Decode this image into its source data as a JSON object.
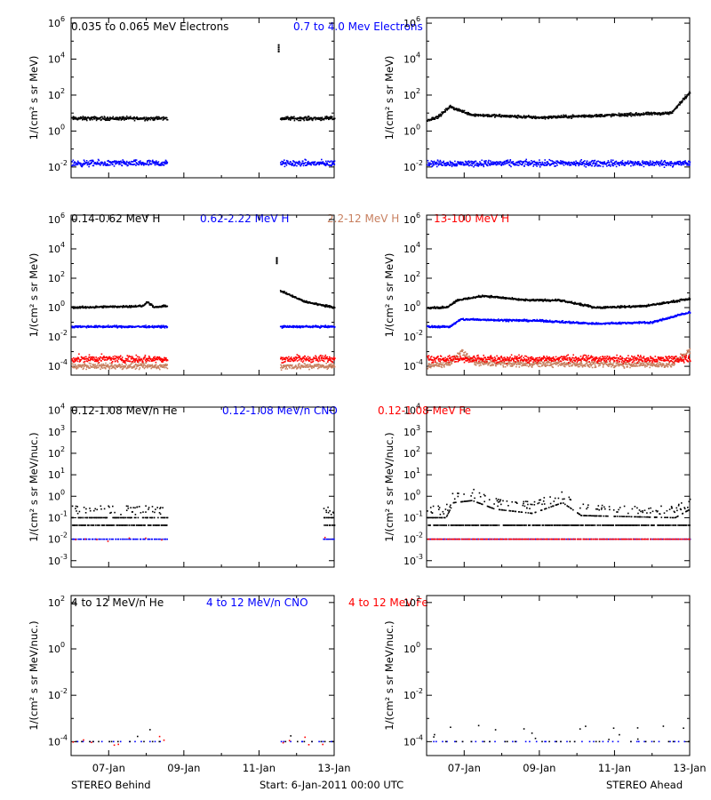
{
  "colors": {
    "black": "#000000",
    "blue": "#0000ff",
    "tan": "#c88060",
    "red": "#ff0000"
  },
  "footer": {
    "left": "STEREO Behind",
    "center": "Start:  6-Jan-2011 00:00 UTC",
    "right": "STEREO Ahead"
  },
  "chart_data": [
    {
      "type": "scatter",
      "row": 0,
      "ylabel": "1/(cm² s sr MeV)",
      "legend": [
        {
          "text": "0.035 to 0.065 MeV Electrons",
          "color": "#000000"
        },
        {
          "text": "0.7 to 4.0 Mev Electrons",
          "color": "#0000ff"
        }
      ],
      "ytick_exponents": [
        -2,
        0,
        2,
        4,
        6
      ],
      "xlim": [
        0,
        7
      ],
      "xticks": [
        "07-Jan",
        "09-Jan",
        "11-Jan",
        "13-Jan"
      ],
      "panels": [
        {
          "side": "Behind",
          "gaps": [
            [
              2.55,
              5.55
            ]
          ],
          "spike": {
            "x": 5.5,
            "level_exp": 4.6
          },
          "series": [
            {
              "color": "#000000",
              "level_exp": 0.7,
              "spread": 0.15
            },
            {
              "color": "#0000ff",
              "level_exp": -1.8,
              "spread": 0.25
            }
          ]
        },
        {
          "side": "Ahead",
          "gaps": [],
          "series": [
            {
              "color": "#000000",
              "level_exp": 0.7,
              "spread": 0.12,
              "profile": [
                [
                  0,
                  0.6
                ],
                [
                  0.3,
                  0.8
                ],
                [
                  0.6,
                  1.35
                ],
                [
                  1.2,
                  0.9
                ],
                [
                  3,
                  0.75
                ],
                [
                  5.2,
                  0.9
                ],
                [
                  6.5,
                  1.0
                ],
                [
                  7,
                  2.2
                ]
              ]
            },
            {
              "color": "#0000ff",
              "level_exp": -1.8,
              "spread": 0.25
            }
          ]
        }
      ]
    },
    {
      "type": "scatter",
      "row": 1,
      "ylabel": "1/(cm² s sr MeV)",
      "legend": [
        {
          "text": "0.14-0.62 MeV H",
          "color": "#000000"
        },
        {
          "text": "0.62-2.22 MeV H",
          "color": "#0000ff"
        },
        {
          "text": "2.2-12 MeV H",
          "color": "#c88060"
        },
        {
          "text": "13-100 MeV H",
          "color": "#ff0000"
        }
      ],
      "ytick_exponents": [
        -4,
        -2,
        0,
        2,
        4,
        6
      ],
      "xlim": [
        0,
        7
      ],
      "xticks": [
        "07-Jan",
        "09-Jan",
        "11-Jan",
        "13-Jan"
      ],
      "panels": [
        {
          "side": "Behind",
          "gaps": [
            [
              2.55,
              5.55
            ]
          ],
          "spike": {
            "x": 5.45,
            "level_exp": 3.2
          },
          "series": [
            {
              "color": "#000000",
              "level_exp": 0.0,
              "spread": 0.1,
              "profile": [
                [
                  0,
                  0
                ],
                [
                  1.9,
                  0.1
                ],
                [
                  2.0,
                  0.4
                ],
                [
                  2.2,
                  0.0
                ],
                [
                  5.5,
                  1.2
                ],
                [
                  6.2,
                  0.4
                ],
                [
                  7,
                  0
                ]
              ]
            },
            {
              "color": "#0000ff",
              "level_exp": -1.3,
              "spread": 0.1
            },
            {
              "color": "#c88060",
              "level_exp": -4.0,
              "spread": 0.3
            },
            {
              "color": "#ff0000",
              "level_exp": -3.5,
              "spread": 0.35
            }
          ]
        },
        {
          "side": "Ahead",
          "gaps": [],
          "series": [
            {
              "color": "#000000",
              "level_exp": 0.0,
              "spread": 0.1,
              "profile": [
                [
                  0,
                  0
                ],
                [
                  0.5,
                  0
                ],
                [
                  0.8,
                  0.5
                ],
                [
                  1.5,
                  0.8
                ],
                [
                  2.6,
                  0.5
                ],
                [
                  3.5,
                  0.5
                ],
                [
                  4.5,
                  0
                ],
                [
                  5.8,
                  0.1
                ],
                [
                  7,
                  0.6
                ]
              ]
            },
            {
              "color": "#0000ff",
              "level_exp": -1.3,
              "spread": 0.1,
              "profile": [
                [
                  0,
                  -1.3
                ],
                [
                  0.6,
                  -1.3
                ],
                [
                  0.9,
                  -0.8
                ],
                [
                  3,
                  -0.9
                ],
                [
                  4.5,
                  -1.1
                ],
                [
                  6,
                  -1.0
                ],
                [
                  7,
                  -0.3
                ]
              ]
            },
            {
              "color": "#c88060",
              "level_exp": -4.0,
              "spread": 0.3,
              "profile": [
                [
                  0,
                  -4
                ],
                [
                  0.6,
                  -3.8
                ],
                [
                  0.9,
                  -3.0
                ],
                [
                  1.3,
                  -3.8
                ],
                [
                  6.5,
                  -3.9
                ],
                [
                  7,
                  -2.9
                ]
              ]
            },
            {
              "color": "#ff0000",
              "level_exp": -3.5,
              "spread": 0.35
            }
          ]
        }
      ]
    },
    {
      "type": "scatter",
      "row": 2,
      "ylabel": "1/(cm² s sr MeV/nuc.)",
      "legend": [
        {
          "text": "0.12-1.08 MeV/n He",
          "color": "#000000"
        },
        {
          "text": "0.12-1.08 MeV/n CNO",
          "color": "#0000ff"
        },
        {
          "text": "0.12-1.08 MeV Fe",
          "color": "#ff0000"
        }
      ],
      "ytick_exponents": [
        -3,
        -2,
        -1,
        0,
        1,
        2,
        3,
        4
      ],
      "xlim": [
        0,
        7
      ],
      "xticks": [
        "07-Jan",
        "09-Jan",
        "11-Jan",
        "13-Jan"
      ],
      "panels": [
        {
          "side": "Behind",
          "gaps": [
            [
              2.55,
              6.7
            ]
          ],
          "series": [
            {
              "color": "#000000",
              "level_exp": -1.0,
              "spread": 0.15,
              "quantized": true
            },
            {
              "color": "#0000ff",
              "level_exp": -2.0,
              "spread": 0.0
            },
            {
              "color": "#ff0000",
              "level_exp": -2.0,
              "spread": 0.2,
              "sparse": true
            }
          ]
        },
        {
          "side": "Ahead",
          "gaps": [],
          "series": [
            {
              "color": "#000000",
              "level_exp": -1.0,
              "spread": 0.15,
              "quantized": true,
              "profile": [
                [
                  0,
                  -1.0
                ],
                [
                  0.5,
                  -1.0
                ],
                [
                  0.7,
                  -0.3
                ],
                [
                  1.2,
                  -0.2
                ],
                [
                  1.8,
                  -0.6
                ],
                [
                  2.8,
                  -0.8
                ],
                [
                  3.6,
                  -0.3
                ],
                [
                  4.1,
                  -0.9
                ],
                [
                  6.6,
                  -1.0
                ],
                [
                  7,
                  -0.6
                ]
              ]
            },
            {
              "color": "#0000ff",
              "level_exp": -2.0,
              "spread": 0.0
            },
            {
              "color": "#ff0000",
              "level_exp": -2.0,
              "spread": 0.0
            }
          ]
        }
      ]
    },
    {
      "type": "scatter",
      "row": 3,
      "ylabel": "1/(cm² s sr MeV/nuc.)",
      "legend": [
        {
          "text": "4 to 12 MeV/n He",
          "color": "#000000"
        },
        {
          "text": "4 to 12 MeV/n CNO",
          "color": "#0000ff"
        },
        {
          "text": "4 to 12 MeV Fe",
          "color": "#ff0000"
        }
      ],
      "ytick_exponents": [
        -4,
        -2,
        0,
        2
      ],
      "xlim": [
        0,
        7
      ],
      "xticks": [
        "07-Jan",
        "09-Jan",
        "11-Jan",
        "13-Jan"
      ],
      "panels": [
        {
          "side": "Behind",
          "gaps": [
            [
              2.55,
              5.55
            ]
          ],
          "series": [
            {
              "color": "#0000ff",
              "level_exp": -4.0,
              "spread": 0.0,
              "sparse": true
            },
            {
              "color": "#000000",
              "level_exp": -4.0,
              "spread": 0.4,
              "sparse": true
            },
            {
              "color": "#ff0000",
              "level_exp": -4.0,
              "spread": 0.3,
              "sparse": true
            }
          ]
        },
        {
          "side": "Ahead",
          "gaps": [],
          "series": [
            {
              "color": "#0000ff",
              "level_exp": -4.0,
              "spread": 0.0,
              "sparse": true
            },
            {
              "color": "#000000",
              "level_exp": -4.0,
              "spread": 0.4,
              "sparse": true
            }
          ]
        }
      ]
    }
  ]
}
